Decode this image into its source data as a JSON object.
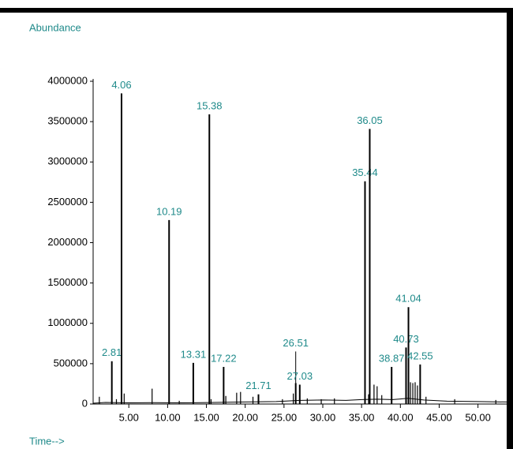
{
  "chart_data": {
    "type": "chromatogram",
    "y_label": "Abundance",
    "x_label": "Time-->",
    "xlim": [
      0.4,
      53.7
    ],
    "ylim": [
      0,
      4000000
    ],
    "yticks": [
      0,
      500000,
      1000000,
      1500000,
      2000000,
      2500000,
      3000000,
      3500000,
      4000000
    ],
    "xticks": [
      {
        "value": 5,
        "label": "5.00"
      },
      {
        "value": 10,
        "label": "10.00"
      },
      {
        "value": 15,
        "label": "15.00"
      },
      {
        "value": 20,
        "label": "20.00"
      },
      {
        "value": 25,
        "label": "25.00"
      },
      {
        "value": 30,
        "label": "30.00"
      },
      {
        "value": 35,
        "label": "35.00"
      },
      {
        "value": 40,
        "label": "40.00"
      },
      {
        "value": 45,
        "label": "45.00"
      },
      {
        "value": 50,
        "label": "50.00"
      }
    ],
    "color": "#000000",
    "label_color": "#1f8a8a",
    "peaks": {
      "x": [
        2.81,
        4.06,
        10.19,
        13.31,
        15.38,
        17.22,
        21.71,
        26.51,
        27.03,
        35.44,
        36.05,
        38.87,
        40.73,
        41.04,
        42.55
      ],
      "values": [
        530000,
        3850000,
        2280000,
        510000,
        3590000,
        460000,
        120000,
        260000,
        240000,
        2760000,
        3410000,
        460000,
        700000,
        1200000,
        490000
      ]
    },
    "minor_peaks": {
      "x": [
        1.2,
        3.4,
        4.4,
        8.0,
        11.5,
        15.6,
        17.5,
        18.9,
        19.4,
        21.0,
        24.8,
        26.2,
        28.0,
        29.8,
        31.5,
        35.9,
        36.6,
        37.0,
        37.6,
        41.3,
        41.6,
        41.9,
        42.2,
        43.3,
        47.0,
        52.3
      ],
      "values": [
        90000,
        60000,
        130000,
        190000,
        40000,
        60000,
        100000,
        140000,
        150000,
        90000,
        60000,
        130000,
        70000,
        60000,
        70000,
        120000,
        240000,
        220000,
        110000,
        270000,
        260000,
        270000,
        230000,
        90000,
        60000,
        50000
      ]
    },
    "baseline": {
      "x": [
        0.4,
        2,
        5,
        8,
        12,
        16,
        20,
        24,
        27,
        30,
        33,
        35,
        37,
        39,
        41,
        43,
        46,
        50,
        53.7
      ],
      "values": [
        10000,
        20000,
        15000,
        18000,
        15000,
        20000,
        25000,
        30000,
        45000,
        50000,
        45000,
        55000,
        60000,
        55000,
        70000,
        50000,
        35000,
        30000,
        25000
      ]
    }
  }
}
